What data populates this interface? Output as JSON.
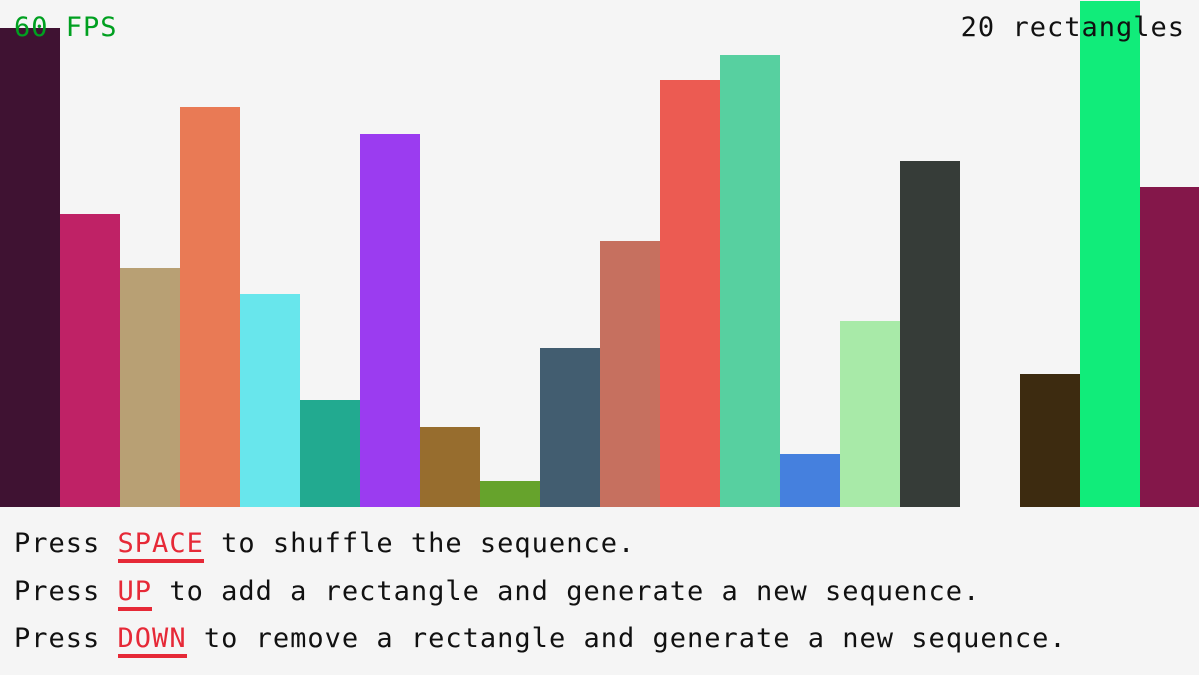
{
  "fps": "60 FPS",
  "rect_count": "20 rectangles",
  "instructions": [
    {
      "prefix": "Press ",
      "key": "SPACE",
      "suffix": " to shuffle the sequence."
    },
    {
      "prefix": "Press ",
      "key": "UP",
      "suffix": " to add a rectangle and generate a new sequence."
    },
    {
      "prefix": "Press ",
      "key": "DOWN",
      "suffix": " to remove a rectangle and generate a new sequence."
    }
  ],
  "colors": {
    "fps": "#00a020",
    "key": "#e62937",
    "background": "#f5f5f5"
  },
  "chart_data": {
    "type": "bar",
    "values": [
      479,
      293,
      239,
      400,
      213,
      107,
      373,
      80,
      26,
      159,
      266,
      427,
      452,
      53,
      186,
      346,
      0,
      133,
      506,
      320
    ],
    "colors": [
      "#3f1232",
      "#bf2266",
      "#b8a074",
      "#e97a55",
      "#68e6ec",
      "#22aa90",
      "#9b3cf0",
      "#976d2e",
      "#66a32c",
      "#425d70",
      "#c6705f",
      "#ec5b52",
      "#57d0a0",
      "#4580de",
      "#a8eaa8",
      "#363c38",
      "#f5f5f5",
      "#3d2b10",
      "#11ec7a",
      "#84174a"
    ]
  }
}
